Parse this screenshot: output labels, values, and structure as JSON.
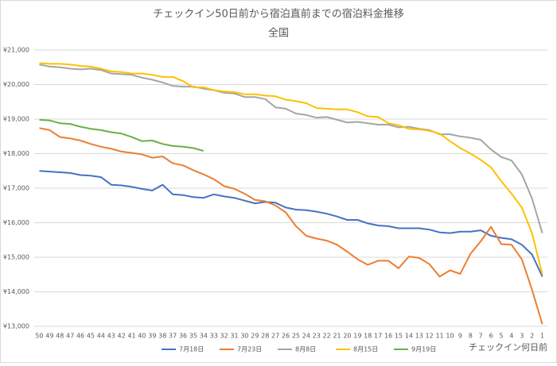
{
  "chart_data": {
    "type": "line",
    "title": "チェックイン50日前から宿泊直前までの宿泊料金推移",
    "subtitle": "全国",
    "x_label": "チェックイン何日前",
    "categories": [
      50,
      49,
      48,
      47,
      46,
      45,
      44,
      43,
      42,
      41,
      40,
      39,
      38,
      37,
      36,
      35,
      34,
      33,
      32,
      31,
      30,
      29,
      28,
      27,
      26,
      25,
      24,
      23,
      22,
      21,
      20,
      19,
      18,
      17,
      16,
      15,
      14,
      13,
      12,
      11,
      10,
      9,
      8,
      7,
      6,
      5,
      4,
      3,
      2,
      1
    ],
    "ylim": [
      13000,
      21000
    ],
    "yticks": [
      {
        "value": 13000,
        "label": "¥13,000"
      },
      {
        "value": 14000,
        "label": "¥14,000"
      },
      {
        "value": 15000,
        "label": "¥15,000"
      },
      {
        "value": 16000,
        "label": "¥16,000"
      },
      {
        "value": 17000,
        "label": "¥17,000"
      },
      {
        "value": 18000,
        "label": "¥18,000"
      },
      {
        "value": 19000,
        "label": "¥19,000"
      },
      {
        "value": 20000,
        "label": "¥20,000"
      },
      {
        "value": 21000,
        "label": "¥21,000"
      }
    ],
    "grid": true,
    "legend": "bottom",
    "series": [
      {
        "name": "7月18日",
        "color": "#4472c4",
        "values": [
          17500,
          17480,
          17460,
          17440,
          17380,
          17360,
          17320,
          17100,
          17080,
          17040,
          16980,
          16930,
          17100,
          16820,
          16800,
          16740,
          16720,
          16820,
          16760,
          16720,
          16640,
          16560,
          16600,
          16580,
          16440,
          16380,
          16360,
          16320,
          16260,
          16180,
          16080,
          16080,
          15980,
          15920,
          15900,
          15840,
          15840,
          15840,
          15800,
          15720,
          15700,
          15740,
          15740,
          15780,
          15620,
          15560,
          15520,
          15360,
          15080,
          14440
        ]
      },
      {
        "name": "7月23日",
        "color": "#ed7d31",
        "values": [
          18740,
          18680,
          18480,
          18440,
          18380,
          18280,
          18200,
          18140,
          18060,
          18020,
          17980,
          17880,
          17920,
          17720,
          17660,
          17520,
          17400,
          17260,
          17060,
          16980,
          16840,
          16660,
          16620,
          16500,
          16300,
          15900,
          15620,
          15540,
          15480,
          15360,
          15160,
          14940,
          14780,
          14900,
          14900,
          14680,
          15020,
          14980,
          14800,
          14440,
          14620,
          14520,
          15100,
          15460,
          15880,
          15380,
          15360,
          14940,
          14060,
          13060
        ]
      },
      {
        "name": "8月8日",
        "color": "#a5a5a5",
        "values": [
          20580,
          20520,
          20500,
          20460,
          20440,
          20460,
          20420,
          20320,
          20300,
          20280,
          20200,
          20140,
          20060,
          19960,
          19940,
          19940,
          19880,
          19840,
          19760,
          19740,
          19640,
          19640,
          19580,
          19340,
          19300,
          19160,
          19120,
          19040,
          19060,
          18980,
          18900,
          18920,
          18880,
          18840,
          18840,
          18760,
          18780,
          18720,
          18680,
          18560,
          18560,
          18500,
          18460,
          18400,
          18120,
          17900,
          17800,
          17400,
          16700,
          15700
        ]
      },
      {
        "name": "8月15日",
        "color": "#ffc000",
        "values": [
          20620,
          20600,
          20600,
          20580,
          20540,
          20520,
          20460,
          20380,
          20360,
          20320,
          20320,
          20280,
          20220,
          20220,
          20100,
          19920,
          19920,
          19840,
          19800,
          19780,
          19720,
          19720,
          19680,
          19660,
          19560,
          19520,
          19460,
          19320,
          19300,
          19280,
          19280,
          19200,
          19080,
          19060,
          18880,
          18820,
          18720,
          18700,
          18660,
          18580,
          18360,
          18160,
          18000,
          17820,
          17600,
          17200,
          16840,
          16440,
          15700,
          14500
        ]
      },
      {
        "name": "9月19日",
        "color": "#70ad47",
        "values": [
          18980,
          18960,
          18880,
          18860,
          18780,
          18720,
          18680,
          18620,
          18580,
          18480,
          18360,
          18380,
          18280,
          18220,
          18200,
          18160,
          18080,
          null,
          null,
          null,
          null,
          null,
          null,
          null,
          null,
          null,
          null,
          null,
          null,
          null,
          null,
          null,
          null,
          null,
          null,
          null,
          null,
          null,
          null,
          null,
          null,
          null,
          null,
          null,
          null,
          null,
          null,
          null,
          null,
          null
        ]
      }
    ]
  }
}
